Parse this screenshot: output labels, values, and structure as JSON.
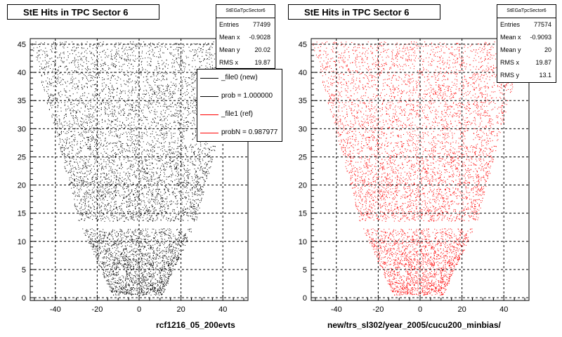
{
  "chart_data": [
    {
      "type": "scatter",
      "title": "StE Hits in TPC Sector 6",
      "xlabel": "rcf1216_05_200evts",
      "ylabel": "",
      "xlim": [
        -52,
        52
      ],
      "ylim": [
        -0.5,
        46
      ],
      "xticks": [
        "-40",
        "-20",
        "0",
        "20",
        "40"
      ],
      "yticks": [
        "0",
        "5",
        "10",
        "15",
        "20",
        "25",
        "30",
        "35",
        "40",
        "45"
      ],
      "grid": true,
      "point_color": "#000000",
      "stats": {
        "name": "StEGaTpcSector6",
        "rows": [
          {
            "label": "Entries",
            "value": "77499"
          },
          {
            "label": "Mean x",
            "value": "-0.9028"
          },
          {
            "label": "Mean y",
            "value": "20.02"
          },
          {
            "label": "RMS x",
            "value": "19.87"
          }
        ]
      },
      "legend": {
        "placement": "top-right",
        "entries": [
          {
            "label": "_file0 (new)",
            "color": "#000000"
          },
          {
            "label": "prob = 1.000000",
            "color": "#000000"
          },
          {
            "label": "_file1 (ref)",
            "color": "#ff0000"
          },
          {
            "label": "probN = 0.987977",
            "color": "#ff0000"
          }
        ]
      }
    },
    {
      "type": "scatter",
      "title": "StE Hits in TPC Sector 6",
      "xlabel": "new/trs_sl302/year_2005/cucu200_minbias/",
      "ylabel": "",
      "xlim": [
        -52,
        52
      ],
      "ylim": [
        -0.5,
        46
      ],
      "xticks": [
        "-40",
        "-20",
        "0",
        "20",
        "40"
      ],
      "yticks": [
        "0",
        "5",
        "10",
        "15",
        "20",
        "25",
        "30",
        "35",
        "40",
        "45"
      ],
      "grid": true,
      "point_color": "#ff0000",
      "stats": {
        "name": "StEGaTpcSector6",
        "rows": [
          {
            "label": "Entries",
            "value": "77574"
          },
          {
            "label": "Mean x",
            "value": "-0.9093"
          },
          {
            "label": "Mean y",
            "value": "20"
          },
          {
            "label": "RMS x",
            "value": "19.87"
          },
          {
            "label": "RMS y",
            "value": "13.1"
          }
        ]
      }
    }
  ]
}
